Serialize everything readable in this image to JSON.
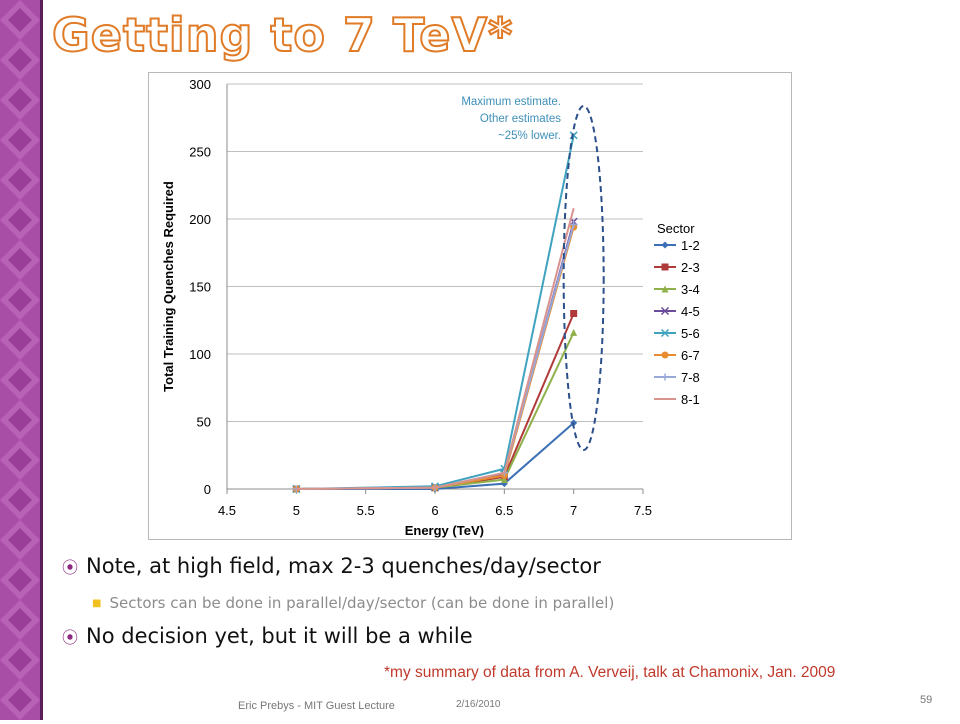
{
  "slide": {
    "title": "Getting to 7 TeV*",
    "bullets": [
      "Note, at high field, max 2-3 quenches/day/sector",
      "Sectors can be done in parallel/day/sector  (can be done in parallel)",
      "No decision yet, but it will be a while"
    ],
    "note": "*my summary of data from A. Verveij, talk at Chamonix, Jan. 2009",
    "footer_left": "Eric Prebys - MIT Guest Lecture",
    "footer_date": "2/16/2010",
    "page_number": "59",
    "colors": {
      "sidebar": "#a84ea6",
      "title_outline": "#e07b27",
      "bullet_marker": "#8b2a7e",
      "note": "#c0392b"
    }
  },
  "chart_data": {
    "type": "line",
    "xlabel": "Energy (TeV)",
    "ylabel": "Total Training Quenches Required",
    "xlim": [
      4.5,
      7.5
    ],
    "ylim": [
      0,
      300
    ],
    "x_ticks": [
      "4.5",
      "5",
      "5.5",
      "6",
      "6.5",
      "7",
      "7.5"
    ],
    "y_ticks": [
      "0",
      "50",
      "100",
      "150",
      "200",
      "250",
      "300"
    ],
    "grid": "horizontal",
    "legend_title": "Sector",
    "legend_position": "right",
    "x": [
      5,
      6,
      6.5,
      7
    ],
    "series": [
      {
        "name": "1-2",
        "color": "#3b6fb6",
        "values": [
          0,
          0,
          4,
          49
        ]
      },
      {
        "name": "2-3",
        "color": "#b03a3a",
        "values": [
          0,
          1,
          9,
          130
        ]
      },
      {
        "name": "3-4",
        "color": "#8fb04a",
        "values": [
          0,
          1,
          7,
          116
        ]
      },
      {
        "name": "4-5",
        "color": "#6a4c9c",
        "values": [
          0,
          1,
          11,
          198
        ]
      },
      {
        "name": "5-6",
        "color": "#3fa3bf",
        "values": [
          0,
          2,
          15,
          262
        ]
      },
      {
        "name": "6-7",
        "color": "#e88c30",
        "values": [
          0,
          1,
          10,
          194
        ]
      },
      {
        "name": "7-8",
        "color": "#98a9d9",
        "values": [
          0,
          1,
          12,
          196
        ]
      },
      {
        "name": "8-1",
        "color": "#d9938f",
        "values": [
          0,
          1,
          12,
          208
        ]
      }
    ],
    "annotation": [
      "Maximum estimate.",
      "Other estimates",
      "~25% lower."
    ]
  }
}
